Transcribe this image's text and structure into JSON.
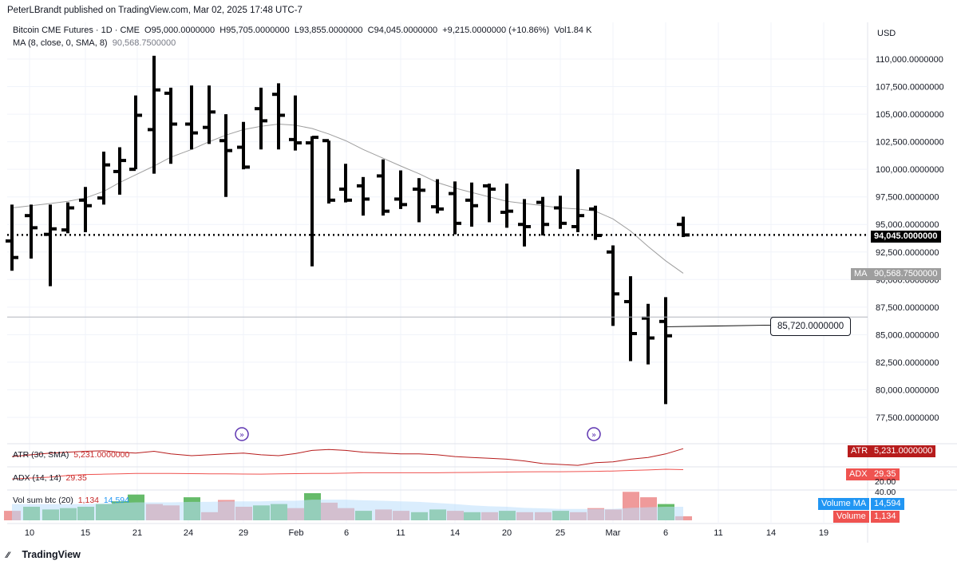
{
  "header": "PeterLBrandt published on TradingView.com, Mar 02, 2025 17:48 UTC-7",
  "symbol": {
    "name": "Bitcoin CME Futures · 1D · CME",
    "open": "O95,000.0000000",
    "high": "H95,705.0000000",
    "low": "L93,855.0000000",
    "close": "C94,045.0000000",
    "change": "+9,215.0000000 (+10.86%)",
    "volume": "Vol1.84 K"
  },
  "ma": {
    "label": "MA (8, close, 0, SMA, 8)",
    "value": "90,568.7500000",
    "tag": "MA",
    "axis_value": "90,568.7500000"
  },
  "currency": "USD",
  "atr": {
    "label": "ATR (30, SMA)",
    "value": "5,231.0000000",
    "tag": "ATR",
    "axis_value": "5,231.0000000"
  },
  "adx": {
    "label": "ADX (14, 14)",
    "value": "29.35",
    "tag": "ADX",
    "axis_value": "29.35",
    "scale": [
      "40.00",
      "20.00"
    ]
  },
  "vol": {
    "label": "Vol sum btc (20)",
    "value1": "1,134",
    "value2": "14,594",
    "tag_ma": "Volume MA",
    "tag_ma_value": "14,594",
    "tag_vol": "Volume",
    "tag_vol_value": "1,134"
  },
  "last_price_label": "94,045.0000000",
  "callout_label": "85,720.0000000",
  "footer_brand": "TradingView",
  "colors": {
    "bar": "#000000",
    "ma": "#9e9e9e",
    "atr": "#b71c1c",
    "adx": "#ef5350",
    "vol_up": "#66bb6a",
    "vol_down": "#ef9a9a",
    "vol_ma": "#bbdefb",
    "event": "#5e35b1"
  },
  "chart_data": {
    "type": "ohlc",
    "title": "Bitcoin CME Futures · 1D · CME",
    "ylabel": "USD",
    "ylim": [
      76500,
      111500
    ],
    "y_ticks": [
      "110,000.0000000",
      "107,500.0000000",
      "105,000.0000000",
      "102,500.0000000",
      "100,000.0000000",
      "97,500.0000000",
      "95,000.0000000",
      "92,500.0000000",
      "90,000.0000000",
      "87,500.0000000",
      "85,000.0000000",
      "82,500.0000000",
      "80,000.0000000",
      "77,500.0000000"
    ],
    "y_tick_values": [
      110000,
      107500,
      105000,
      102500,
      100000,
      97500,
      95000,
      92500,
      90000,
      87500,
      85000,
      82500,
      80000,
      77500
    ],
    "x_ticks": [
      {
        "label": "10",
        "idx": 0
      },
      {
        "label": "15",
        "idx": 3
      },
      {
        "label": "21",
        "idx": 6
      },
      {
        "label": "24",
        "idx": 9
      },
      {
        "label": "29",
        "idx": 12
      },
      {
        "label": "Feb",
        "idx": 15
      },
      {
        "label": "6",
        "idx": 18
      },
      {
        "label": "11",
        "idx": 21
      },
      {
        "label": "14",
        "idx": 24
      },
      {
        "label": "20",
        "idx": 27
      },
      {
        "label": "25",
        "idx": 30
      },
      {
        "label": "Mar",
        "idx": 33
      },
      {
        "label": "6",
        "idx": 36
      },
      {
        "label": "11",
        "idx": 39
      },
      {
        "label": "14",
        "idx": 42
      },
      {
        "label": "19",
        "idx": 45
      }
    ],
    "ohlc": [
      {
        "o": 93500,
        "h": 96800,
        "l": 90800,
        "c": 92000
      },
      {
        "o": 95800,
        "h": 96800,
        "l": 91900,
        "c": 94700
      },
      {
        "o": 94100,
        "h": 96800,
        "l": 89400,
        "c": 94600
      },
      {
        "o": 94500,
        "h": 97000,
        "l": 94200,
        "c": 96500
      },
      {
        "o": 97200,
        "h": 98400,
        "l": 94300,
        "c": 96700
      },
      {
        "o": 97400,
        "h": 101600,
        "l": 96800,
        "c": 100400
      },
      {
        "o": 99800,
        "h": 102000,
        "l": 97700,
        "c": 100800
      },
      {
        "o": 100000,
        "h": 106700,
        "l": 100000,
        "c": 104900
      },
      {
        "o": 103600,
        "h": 110300,
        "l": 99600,
        "c": 107200
      },
      {
        "o": 106900,
        "h": 107400,
        "l": 100500,
        "c": 104100
      },
      {
        "o": 104100,
        "h": 107600,
        "l": 101800,
        "c": 103300
      },
      {
        "o": 103800,
        "h": 107600,
        "l": 102300,
        "c": 105200
      },
      {
        "o": 102600,
        "h": 105000,
        "l": 97500,
        "c": 101700
      },
      {
        "o": 102000,
        "h": 104300,
        "l": 100000,
        "c": 100200
      },
      {
        "o": 105500,
        "h": 107400,
        "l": 101800,
        "c": 104400
      },
      {
        "o": 106800,
        "h": 107800,
        "l": 101800,
        "c": 104900
      },
      {
        "o": 102700,
        "h": 106700,
        "l": 101700,
        "c": 102400
      },
      {
        "o": 102400,
        "h": 103000,
        "l": 91200,
        "c": 102900
      },
      {
        "o": 102600,
        "h": 102600,
        "l": 96900,
        "c": 97200
      },
      {
        "o": 98200,
        "h": 100500,
        "l": 97000,
        "c": 97200
      },
      {
        "o": 98500,
        "h": 99300,
        "l": 95800,
        "c": 97300
      },
      {
        "o": 99400,
        "h": 100900,
        "l": 95800,
        "c": 96200
      },
      {
        "o": 97300,
        "h": 99900,
        "l": 96400,
        "c": 96800
      },
      {
        "o": 98200,
        "h": 99200,
        "l": 95200,
        "c": 98100
      },
      {
        "o": 96600,
        "h": 99100,
        "l": 96000,
        "c": 96400
      },
      {
        "o": 97800,
        "h": 98900,
        "l": 94100,
        "c": 95100
      },
      {
        "o": 97200,
        "h": 98800,
        "l": 94800,
        "c": 96700
      },
      {
        "o": 98500,
        "h": 98700,
        "l": 95200,
        "c": 98200
      },
      {
        "o": 96100,
        "h": 98700,
        "l": 94700,
        "c": 96200
      },
      {
        "o": 95000,
        "h": 97300,
        "l": 93000,
        "c": 94800
      },
      {
        "o": 97000,
        "h": 97500,
        "l": 94000,
        "c": 95000
      },
      {
        "o": 96500,
        "h": 97600,
        "l": 94600,
        "c": 95100
      },
      {
        "o": 94800,
        "h": 100000,
        "l": 94300,
        "c": 95800
      },
      {
        "o": 96400,
        "h": 96700,
        "l": 93600,
        "c": 94000
      },
      {
        "o": 92500,
        "h": 93100,
        "l": 85800,
        "c": 88700
      },
      {
        "o": 88000,
        "h": 90300,
        "l": 82600,
        "c": 85100
      },
      {
        "o": 86500,
        "h": 87800,
        "l": 82300,
        "c": 84700
      },
      {
        "o": 86200,
        "h": 88400,
        "l": 78700,
        "c": 84900
      },
      {
        "o": 95000,
        "h": 95705,
        "l": 93855,
        "c": 94045
      }
    ],
    "bar_x": [
      15,
      39,
      63,
      85,
      107,
      130,
      150,
      170,
      193,
      214,
      240,
      262,
      283,
      305,
      327,
      349,
      370,
      391,
      412,
      433,
      455,
      480,
      502,
      525,
      548,
      570,
      591,
      613,
      635,
      657,
      680,
      702,
      724,
      746,
      768,
      790,
      812,
      834,
      856
    ],
    "ma_series": [
      96500,
      96700,
      96900,
      97100,
      97400,
      98000,
      98800,
      99500,
      100300,
      101100,
      101800,
      102500,
      103100,
      103600,
      103900,
      104100,
      104000,
      103700,
      103200,
      102600,
      101800,
      101000,
      100300,
      99600,
      98800,
      98300,
      97900,
      97500,
      97100,
      96900,
      96700,
      96500,
      96400,
      96200,
      95500,
      94400,
      93000,
      91700,
      90568.75
    ],
    "atr_series": [
      0.55,
      0.45,
      0.35,
      0.3,
      0.25,
      0.22,
      0.3,
      0.35,
      0.25,
      0.4,
      0.5,
      0.45,
      0.4,
      0.35,
      0.45,
      0.5,
      0.38,
      0.2,
      0.15,
      0.2,
      0.3,
      0.35,
      0.4,
      0.4,
      0.45,
      0.55,
      0.6,
      0.65,
      0.7,
      0.8,
      0.95,
      1.0,
      1.05,
      0.9,
      0.85,
      0.7,
      0.6,
      0.4,
      0.1
    ],
    "adx_series": [
      0.55,
      0.5,
      0.45,
      0.35,
      0.3,
      0.28,
      0.26,
      0.24,
      0.24,
      0.24,
      0.25,
      0.26,
      0.26,
      0.27,
      0.28,
      0.26,
      0.25,
      0.24,
      0.24,
      0.22,
      0.2,
      0.2,
      0.2,
      0.2,
      0.2,
      0.19,
      0.18,
      0.17,
      0.16,
      0.15,
      0.14,
      0.14,
      0.13,
      0.12,
      0.1,
      0.07,
      0.04,
      0.0,
      0.02
    ],
    "volume_series": [
      {
        "v": 0.35,
        "up": false
      },
      {
        "v": 0.5,
        "up": true
      },
      {
        "v": 0.4,
        "up": true
      },
      {
        "v": 0.45,
        "up": true
      },
      {
        "v": 0.5,
        "up": true
      },
      {
        "v": 0.6,
        "up": true
      },
      {
        "v": 0.7,
        "up": true
      },
      {
        "v": 0.95,
        "up": true
      },
      {
        "v": 0.6,
        "up": false
      },
      {
        "v": 0.55,
        "up": false
      },
      {
        "v": 0.85,
        "up": true
      },
      {
        "v": 0.3,
        "up": false
      },
      {
        "v": 0.75,
        "up": false
      },
      {
        "v": 0.5,
        "up": false
      },
      {
        "v": 0.55,
        "up": true
      },
      {
        "v": 0.6,
        "up": true
      },
      {
        "v": 0.45,
        "up": false
      },
      {
        "v": 1.0,
        "up": true
      },
      {
        "v": 0.65,
        "up": false
      },
      {
        "v": 0.45,
        "up": false
      },
      {
        "v": 0.35,
        "up": true
      },
      {
        "v": 0.4,
        "up": false
      },
      {
        "v": 0.35,
        "up": false
      },
      {
        "v": 0.3,
        "up": true
      },
      {
        "v": 0.4,
        "up": true
      },
      {
        "v": 0.35,
        "up": false
      },
      {
        "v": 0.3,
        "up": true
      },
      {
        "v": 0.3,
        "up": false
      },
      {
        "v": 0.35,
        "up": true
      },
      {
        "v": 0.3,
        "up": false
      },
      {
        "v": 0.3,
        "up": false
      },
      {
        "v": 0.35,
        "up": true
      },
      {
        "v": 0.3,
        "up": false
      },
      {
        "v": 0.45,
        "up": false
      },
      {
        "v": 0.4,
        "up": false
      },
      {
        "v": 1.05,
        "up": false
      },
      {
        "v": 0.85,
        "up": false
      },
      {
        "v": 0.6,
        "up": true
      },
      {
        "v": 0.15,
        "up": false
      }
    ],
    "vol_ma_series": [
      0.6,
      0.6,
      0.6,
      0.6,
      0.6,
      0.62,
      0.64,
      0.66,
      0.66,
      0.66,
      0.68,
      0.68,
      0.7,
      0.7,
      0.7,
      0.72,
      0.72,
      0.76,
      0.76,
      0.76,
      0.74,
      0.72,
      0.7,
      0.68,
      0.64,
      0.6,
      0.55,
      0.52,
      0.5,
      0.46,
      0.44,
      0.42,
      0.42,
      0.42,
      0.42,
      0.46,
      0.48,
      0.5,
      0.5
    ],
    "last_price": 94045,
    "callout_price": 85720,
    "callout_from_idx": 37,
    "event_marker_idx": [
      13,
      33
    ]
  }
}
